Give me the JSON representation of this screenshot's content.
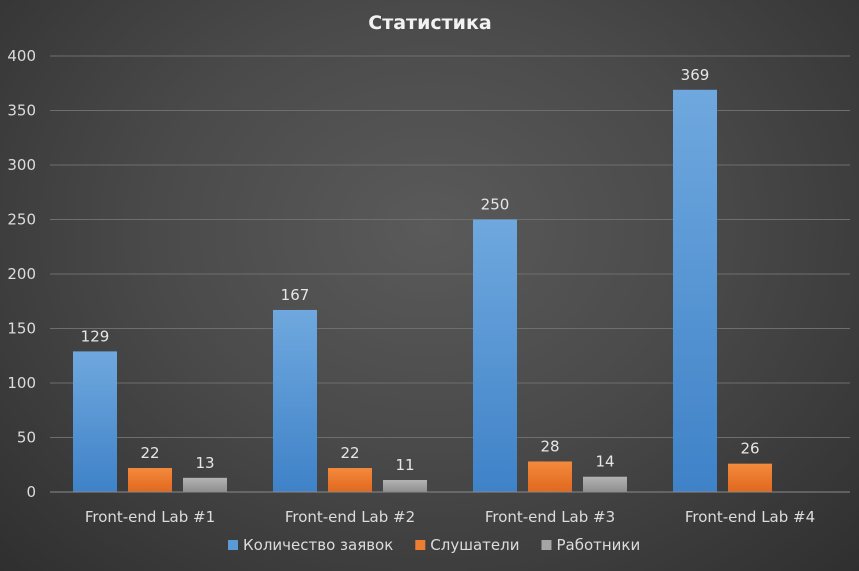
{
  "chart_data": {
    "type": "bar",
    "title": "Статистика",
    "xlabel": "",
    "ylabel": "",
    "ylim": [
      0,
      400
    ],
    "yticks": [
      0,
      50,
      100,
      150,
      200,
      250,
      300,
      350,
      400
    ],
    "grid": true,
    "legend_position": "bottom",
    "categories": [
      "Front-end Lab #1",
      "Front-end Lab #2",
      "Front-end Lab #3",
      "Front-end Lab #4"
    ],
    "series": [
      {
        "name": "Количество заявок",
        "color": "#5b9bd5",
        "values": [
          129,
          167,
          250,
          369
        ]
      },
      {
        "name": "Слушатели",
        "color": "#ed7d31",
        "values": [
          22,
          22,
          28,
          26
        ]
      },
      {
        "name": "Работники",
        "color": "#a5a5a5",
        "values": [
          13,
          11,
          14,
          null
        ]
      }
    ]
  }
}
